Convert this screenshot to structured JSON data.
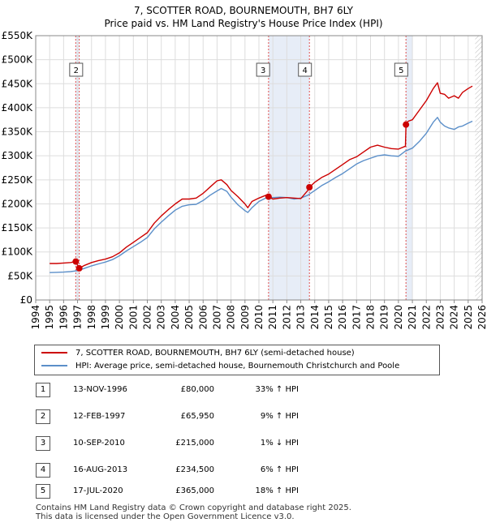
{
  "title_line1": "7, SCOTTER ROAD, BOURNEMOUTH, BH7 6LY",
  "title_line2": "Price paid vs. HM Land Registry's House Price Index (HPI)",
  "colors": {
    "property": "#cc0000",
    "hpi": "#5b8fc9",
    "marker": "#cc0000"
  },
  "chart_data": {
    "type": "line",
    "xlim": [
      1994,
      2026
    ],
    "ylim": [
      0,
      550000
    ],
    "y_ticks": [
      0,
      50000,
      100000,
      150000,
      200000,
      250000,
      300000,
      350000,
      400000,
      450000,
      500000,
      550000
    ],
    "y_tick_labels": [
      "£0",
      "£50K",
      "£100K",
      "£150K",
      "£200K",
      "£250K",
      "£300K",
      "£350K",
      "£400K",
      "£450K",
      "£500K",
      "£550K"
    ],
    "x_ticks": [
      1994,
      1995,
      1996,
      1997,
      1998,
      1999,
      2000,
      2001,
      2002,
      2003,
      2004,
      2005,
      2006,
      2007,
      2008,
      2009,
      2010,
      2011,
      2012,
      2013,
      2014,
      2015,
      2016,
      2017,
      2018,
      2019,
      2020,
      2021,
      2022,
      2023,
      2024,
      2025,
      2026
    ],
    "x_tick_labels": [
      "1994",
      "1995",
      "1996",
      "1997",
      "1998",
      "1999",
      "2000",
      "2001",
      "2002",
      "2003",
      "2004",
      "2005",
      "2006",
      "2007",
      "2008",
      "2009",
      "2010",
      "2011",
      "2012",
      "2013",
      "2014",
      "2015",
      "2016",
      "2017",
      "2018",
      "2019",
      "2020",
      "2021",
      "2022",
      "2023",
      "2024",
      "2025",
      "2026"
    ],
    "series": [
      {
        "name": "7, SCOTTER ROAD, BOURNEMOUTH, BH7 6LY (semi-detached house)",
        "x": [
          1995.0,
          1995.5,
          1996.0,
          1996.5,
          1996.87,
          1997.12,
          1997.5,
          1998.0,
          1998.5,
          1999.0,
          1999.5,
          2000.0,
          2000.5,
          2001.0,
          2001.5,
          2002.0,
          2002.5,
          2003.0,
          2003.5,
          2004.0,
          2004.5,
          2005.0,
          2005.5,
          2006.0,
          2006.5,
          2007.0,
          2007.3,
          2007.7,
          2008.0,
          2008.5,
          2009.0,
          2009.2,
          2009.5,
          2010.0,
          2010.5,
          2010.69,
          2011.0,
          2011.5,
          2012.0,
          2012.5,
          2013.0,
          2013.5,
          2013.62,
          2014.0,
          2014.5,
          2015.0,
          2015.5,
          2016.0,
          2016.5,
          2017.0,
          2017.5,
          2018.0,
          2018.5,
          2019.0,
          2019.5,
          2020.0,
          2020.5,
          2020.54,
          2020.7,
          2021.0,
          2021.5,
          2022.0,
          2022.5,
          2022.8,
          2023.0,
          2023.3,
          2023.6,
          2024.0,
          2024.3,
          2024.6,
          2025.0,
          2025.3
        ],
        "values": [
          76000,
          76000,
          77000,
          78000,
          80000,
          65950,
          72000,
          78000,
          82000,
          85000,
          90000,
          98000,
          110000,
          120000,
          130000,
          140000,
          160000,
          175000,
          188000,
          200000,
          210000,
          210000,
          212000,
          222000,
          235000,
          248000,
          250000,
          240000,
          228000,
          215000,
          200000,
          192000,
          205000,
          212000,
          218000,
          215000,
          210000,
          212000,
          213000,
          212000,
          211000,
          228000,
          234500,
          245000,
          255000,
          262000,
          272000,
          282000,
          292000,
          298000,
          308000,
          318000,
          322000,
          318000,
          315000,
          314000,
          320000,
          365000,
          372000,
          375000,
          395000,
          415000,
          440000,
          452000,
          430000,
          428000,
          420000,
          425000,
          420000,
          432000,
          440000,
          445000
        ]
      },
      {
        "name": "HPI: Average price, semi-detached house, Bournemouth Christchurch and Poole",
        "x": [
          1995.0,
          1995.5,
          1996.0,
          1996.5,
          1997.0,
          1997.5,
          1998.0,
          1998.5,
          1999.0,
          1999.5,
          2000.0,
          2000.5,
          2001.0,
          2001.5,
          2002.0,
          2002.5,
          2003.0,
          2003.5,
          2004.0,
          2004.5,
          2005.0,
          2005.5,
          2006.0,
          2006.5,
          2007.0,
          2007.3,
          2007.7,
          2008.0,
          2008.5,
          2009.0,
          2009.2,
          2009.5,
          2010.0,
          2010.5,
          2011.0,
          2011.5,
          2012.0,
          2012.5,
          2013.0,
          2013.5,
          2014.0,
          2014.5,
          2015.0,
          2015.5,
          2016.0,
          2016.5,
          2017.0,
          2017.5,
          2018.0,
          2018.5,
          2019.0,
          2019.5,
          2020.0,
          2020.5,
          2021.0,
          2021.5,
          2022.0,
          2022.5,
          2022.8,
          2023.0,
          2023.3,
          2023.6,
          2024.0,
          2024.3,
          2024.6,
          2025.0,
          2025.3
        ],
        "values": [
          57000,
          57500,
          58000,
          59000,
          61000,
          66000,
          71000,
          75000,
          79000,
          84000,
          92000,
          102000,
          111000,
          120000,
          130000,
          148000,
          162000,
          175000,
          187000,
          195000,
          198000,
          199000,
          207000,
          218000,
          227000,
          232000,
          226000,
          214000,
          198000,
          186000,
          182000,
          192000,
          205000,
          212000,
          213000,
          214000,
          213000,
          210000,
          212000,
          218000,
          228000,
          238000,
          246000,
          255000,
          263000,
          273000,
          283000,
          290000,
          295000,
          300000,
          302000,
          300000,
          299000,
          310000,
          316000,
          330000,
          347000,
          370000,
          380000,
          370000,
          362000,
          358000,
          355000,
          360000,
          362000,
          368000,
          372000
        ]
      }
    ],
    "sales": [
      {
        "num": "1",
        "x": 1996.87,
        "value": 80000
      },
      {
        "num": "2",
        "x": 1997.12,
        "value": 65950
      },
      {
        "num": "3",
        "x": 2010.69,
        "value": 215000
      },
      {
        "num": "4",
        "x": 2013.62,
        "value": 234500
      },
      {
        "num": "5",
        "x": 2020.54,
        "value": 365000
      }
    ],
    "shaded_spans": [
      [
        1996.87,
        1997.12
      ],
      [
        2010.69,
        2013.62
      ],
      [
        2020.54,
        2021.0
      ]
    ],
    "box_labels": [
      {
        "num": "2",
        "x": 1996.9
      },
      {
        "num": "3",
        "x": 2010.3
      },
      {
        "num": "4",
        "x": 2013.3
      },
      {
        "num": "5",
        "x": 2020.2
      }
    ],
    "hatch_from": 2025.5
  },
  "legend": {
    "property_label": "7, SCOTTER ROAD, BOURNEMOUTH, BH7 6LY (semi-detached house)",
    "hpi_label": "HPI: Average price, semi-detached house, Bournemouth Christchurch and Poole"
  },
  "sales_table": [
    {
      "num": "1",
      "date": "13-NOV-1996",
      "price": "£80,000",
      "hpi": "33% ↑ HPI"
    },
    {
      "num": "2",
      "date": "12-FEB-1997",
      "price": "£65,950",
      "hpi": "9% ↑ HPI"
    },
    {
      "num": "3",
      "date": "10-SEP-2010",
      "price": "£215,000",
      "hpi": "1% ↓ HPI"
    },
    {
      "num": "4",
      "date": "16-AUG-2013",
      "price": "£234,500",
      "hpi": "6% ↑ HPI"
    },
    {
      "num": "5",
      "date": "17-JUL-2020",
      "price": "£365,000",
      "hpi": "18% ↑ HPI"
    }
  ],
  "footer": {
    "line1": "Contains HM Land Registry data © Crown copyright and database right 2025.",
    "line2": "This data is licensed under the Open Government Licence v3.0."
  }
}
